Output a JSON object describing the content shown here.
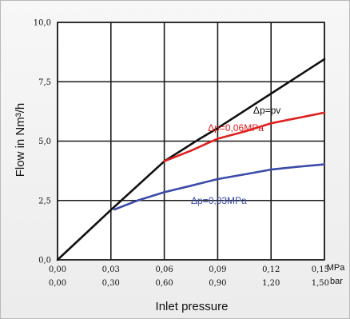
{
  "chart_data": {
    "type": "line",
    "xlabel": "Inlet pressure",
    "ylabel": "Flow in Nm³/h",
    "xlim": [
      0,
      0.15
    ],
    "ylim": [
      0,
      10
    ],
    "grid": true,
    "x_ticks_mpa": [
      "0,00",
      "0,03",
      "0,06",
      "0,09",
      "0,12",
      "0,15"
    ],
    "x_ticks_bar": [
      "0,00",
      "0,30",
      "0,60",
      "0,90",
      "1,20",
      "1,50"
    ],
    "x_unit_mpa": "MPa",
    "x_unit_bar": "bar",
    "y_ticks": [
      "0,0",
      "2,5",
      "5,0",
      "7,5",
      "10,0"
    ],
    "y_tick_values": [
      0,
      2.5,
      5,
      7.5,
      10
    ],
    "x_tick_values": [
      0,
      0.03,
      0.06,
      0.09,
      0.12,
      0.15
    ],
    "series": [
      {
        "name": "Δp=pv",
        "color": "#111111",
        "points": [
          [
            0,
            0
          ],
          [
            0.03,
            2.1
          ],
          [
            0.06,
            4.15
          ],
          [
            0.08,
            5.1
          ],
          [
            0.09,
            5.55
          ],
          [
            0.12,
            7.0
          ],
          [
            0.15,
            8.45
          ]
        ]
      },
      {
        "name": "Δp=0,06MPa",
        "color": "#e02020",
        "points": [
          [
            0.06,
            4.15
          ],
          [
            0.075,
            4.6
          ],
          [
            0.09,
            5.1
          ],
          [
            0.105,
            5.4
          ],
          [
            0.12,
            5.75
          ],
          [
            0.15,
            6.2
          ]
        ]
      },
      {
        "name": "Δp=0,03MPa",
        "color": "#3b4ba8",
        "points": [
          [
            0.032,
            2.12
          ],
          [
            0.045,
            2.5
          ],
          [
            0.06,
            2.85
          ],
          [
            0.075,
            3.12
          ],
          [
            0.09,
            3.4
          ],
          [
            0.105,
            3.6
          ],
          [
            0.12,
            3.8
          ],
          [
            0.135,
            3.92
          ],
          [
            0.15,
            4.02
          ]
        ]
      }
    ]
  }
}
